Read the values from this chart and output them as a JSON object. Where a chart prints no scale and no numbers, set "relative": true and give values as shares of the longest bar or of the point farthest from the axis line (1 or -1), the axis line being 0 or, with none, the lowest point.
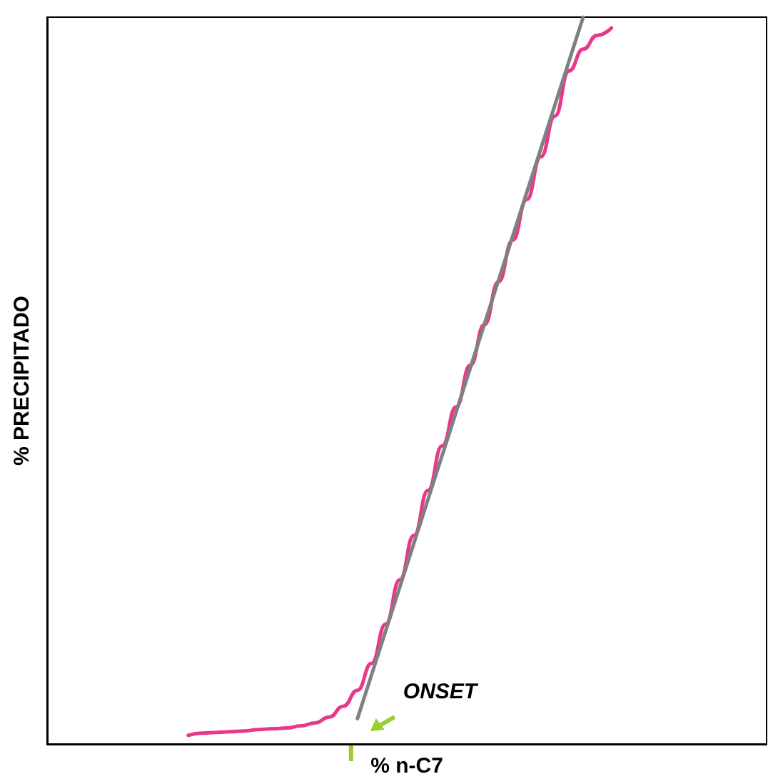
{
  "chart_data": {
    "type": "line",
    "relative": true,
    "xlabel": "% n-C7",
    "ylabel": "% PRECIPITADO",
    "tick_labels": false,
    "marker": "none",
    "annotations": [
      "ONSET"
    ],
    "categories": [
      null,
      null,
      null,
      null,
      null,
      null,
      null,
      null,
      null,
      null,
      null,
      null,
      null,
      null,
      null,
      null,
      null,
      null,
      null,
      null,
      null,
      null,
      null,
      null,
      null,
      null,
      null,
      null,
      null,
      null,
      null,
      null,
      null,
      null,
      null,
      null,
      null,
      null,
      null,
      null,
      null,
      null,
      null,
      null,
      null,
      null,
      null,
      null,
      null,
      null,
      null,
      null
    ],
    "series": [
      {
        "color": "#e8388a",
        "values": [
          null,
          null,
          null,
          null,
          null,
          null,
          null,
          null,
          null,
          null,
          0.012,
          0.015,
          0.016,
          0.017,
          0.018,
          0.02,
          0.021,
          0.022,
          0.025,
          0.029,
          0.037,
          0.052,
          0.074,
          0.111,
          0.165,
          0.226,
          0.287,
          0.349,
          0.41,
          0.464,
          0.521,
          0.577,
          0.636,
          0.693,
          0.749,
          0.808,
          0.864,
          0.926,
          0.956,
          0.975,
          0.985,
          null,
          null,
          null,
          null,
          null,
          null,
          null,
          null,
          null,
          null,
          null
        ]
      },
      {
        "color": "#808080",
        "values": [
          null,
          null,
          null,
          null,
          null,
          null,
          null,
          null,
          null,
          null,
          null,
          null,
          null,
          null,
          null,
          null,
          null,
          null,
          null,
          null,
          null,
          null,
          0.035,
          null,
          null,
          null,
          null,
          null,
          null,
          null,
          null,
          null,
          null,
          null,
          null,
          null,
          null,
          null,
          1.0,
          null,
          null,
          null,
          null,
          null,
          null,
          null,
          null,
          null,
          null,
          null,
          null,
          null
        ]
      }
    ]
  }
}
